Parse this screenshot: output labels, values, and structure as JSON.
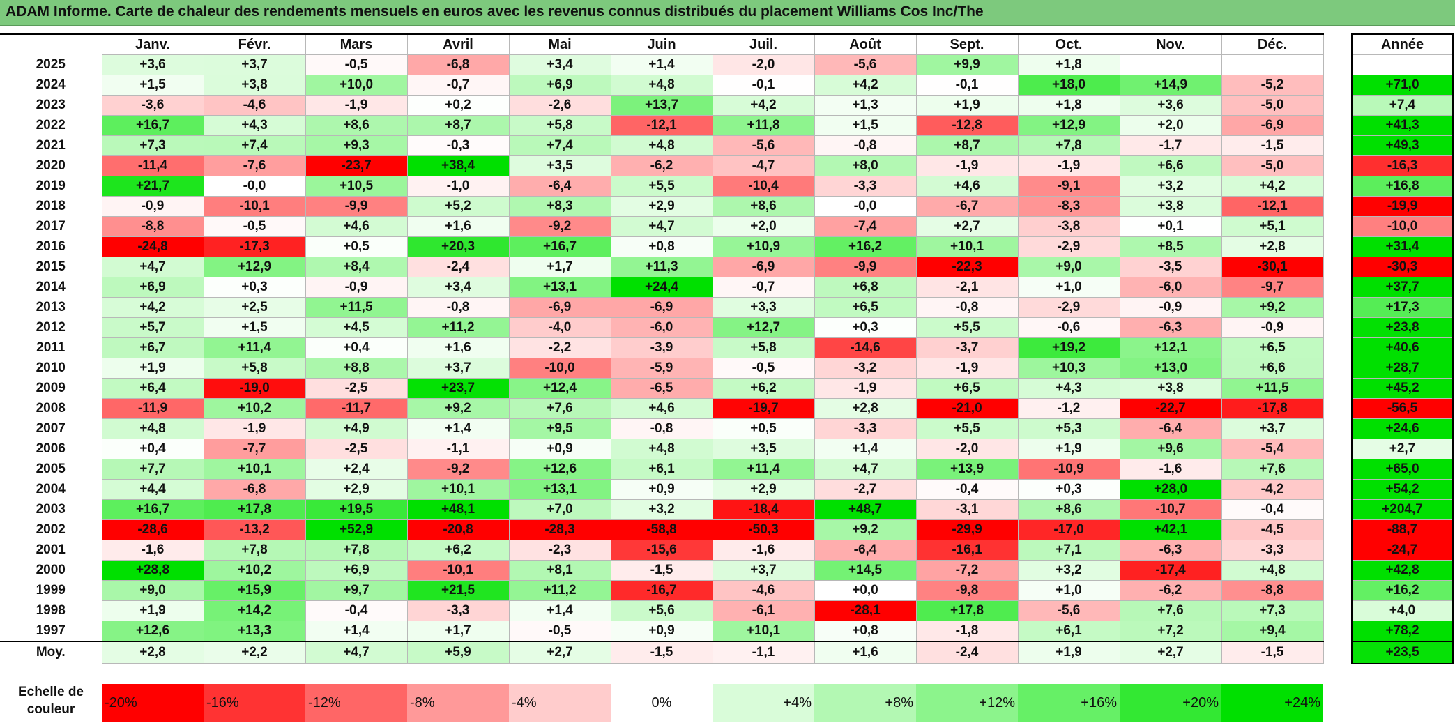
{
  "title": "ADAM Informe. Carte de chaleur des rendements mensuels en euros avec les revenus connus distribués du placement Williams Cos Inc/The",
  "chart_data": {
    "type": "heatmap",
    "title": "ADAM Informe. Carte de chaleur des rendements mensuels en euros avec les revenus connus distribués du placement Williams Cos Inc/The",
    "months": [
      "Janv.",
      "Févr.",
      "Mars",
      "Avril",
      "Mai",
      "Juin",
      "Juil.",
      "Août",
      "Sept.",
      "Oct.",
      "Nov.",
      "Déc."
    ],
    "annual_header": "Année",
    "rows": [
      {
        "year": "2025",
        "values": [
          "+3,6",
          "+3,7",
          "-0,5",
          "-6,8",
          "+3,4",
          "+1,4",
          "-2,0",
          "-5,6",
          "+9,9",
          "+1,8",
          "",
          ""
        ],
        "annual": ""
      },
      {
        "year": "2024",
        "values": [
          "+1,5",
          "+3,8",
          "+10,0",
          "-0,7",
          "+6,9",
          "+4,8",
          "-0,1",
          "+4,2",
          "-0,1",
          "+18,0",
          "+14,9",
          "-5,2"
        ],
        "annual": "+71,0"
      },
      {
        "year": "2023",
        "values": [
          "-3,6",
          "-4,6",
          "-1,9",
          "+0,2",
          "-2,6",
          "+13,7",
          "+4,2",
          "+1,3",
          "+1,9",
          "+1,8",
          "+3,6",
          "-5,0"
        ],
        "annual": "+7,4"
      },
      {
        "year": "2022",
        "values": [
          "+16,7",
          "+4,3",
          "+8,6",
          "+8,7",
          "+5,8",
          "-12,1",
          "+11,8",
          "+1,5",
          "-12,8",
          "+12,9",
          "+2,0",
          "-6,9"
        ],
        "annual": "+41,3"
      },
      {
        "year": "2021",
        "values": [
          "+7,3",
          "+7,4",
          "+9,3",
          "-0,3",
          "+7,4",
          "+4,8",
          "-5,6",
          "-0,8",
          "+8,7",
          "+7,8",
          "-1,7",
          "-1,5"
        ],
        "annual": "+49,3"
      },
      {
        "year": "2020",
        "values": [
          "-11,4",
          "-7,6",
          "-23,7",
          "+38,4",
          "+3,5",
          "-6,2",
          "-4,7",
          "+8,0",
          "-1,9",
          "-1,9",
          "+6,6",
          "-5,0"
        ],
        "annual": "-16,3"
      },
      {
        "year": "2019",
        "values": [
          "+21,7",
          "-0,0",
          "+10,5",
          "-1,0",
          "-6,4",
          "+5,5",
          "-10,4",
          "-3,3",
          "+4,6",
          "-9,1",
          "+3,2",
          "+4,2"
        ],
        "annual": "+16,8"
      },
      {
        "year": "2018",
        "values": [
          "-0,9",
          "-10,1",
          "-9,9",
          "+5,2",
          "+8,3",
          "+2,9",
          "+8,6",
          "-0,0",
          "-6,7",
          "-8,3",
          "+3,8",
          "-12,1"
        ],
        "annual": "-19,9"
      },
      {
        "year": "2017",
        "values": [
          "-8,8",
          "-0,5",
          "+4,6",
          "+1,6",
          "-9,2",
          "+4,7",
          "+2,0",
          "-7,4",
          "+2,7",
          "-3,8",
          "+0,1",
          "+5,1"
        ],
        "annual": "-10,0"
      },
      {
        "year": "2016",
        "values": [
          "-24,8",
          "-17,3",
          "+0,5",
          "+20,3",
          "+16,7",
          "+0,8",
          "+10,9",
          "+16,2",
          "+10,1",
          "-2,9",
          "+8,5",
          "+2,8"
        ],
        "annual": "+31,4"
      },
      {
        "year": "2015",
        "values": [
          "+4,7",
          "+12,9",
          "+8,4",
          "-2,4",
          "+1,7",
          "+11,3",
          "-6,9",
          "-9,9",
          "-22,3",
          "+9,0",
          "-3,5",
          "-30,1"
        ],
        "annual": "-30,3"
      },
      {
        "year": "2014",
        "values": [
          "+6,9",
          "+0,3",
          "-0,9",
          "+3,4",
          "+13,1",
          "+24,4",
          "-0,7",
          "+6,8",
          "-2,1",
          "+1,0",
          "-6,0",
          "-9,7"
        ],
        "annual": "+37,7"
      },
      {
        "year": "2013",
        "values": [
          "+4,2",
          "+2,5",
          "+11,5",
          "-0,8",
          "-6,9",
          "-6,9",
          "+3,3",
          "+6,5",
          "-0,8",
          "-2,9",
          "-0,9",
          "+9,2"
        ],
        "annual": "+17,3"
      },
      {
        "year": "2012",
        "values": [
          "+5,7",
          "+1,5",
          "+4,5",
          "+11,2",
          "-4,0",
          "-6,0",
          "+12,7",
          "+0,3",
          "+5,5",
          "-0,6",
          "-6,3",
          "-0,9"
        ],
        "annual": "+23,8"
      },
      {
        "year": "2011",
        "values": [
          "+6,7",
          "+11,4",
          "+0,4",
          "+1,6",
          "-2,2",
          "-3,9",
          "+5,8",
          "-14,6",
          "-3,7",
          "+19,2",
          "+12,1",
          "+6,5"
        ],
        "annual": "+40,6"
      },
      {
        "year": "2010",
        "values": [
          "+1,9",
          "+5,8",
          "+8,8",
          "+3,7",
          "-10,0",
          "-5,9",
          "-0,5",
          "-3,2",
          "-1,9",
          "+10,3",
          "+13,0",
          "+6,6"
        ],
        "annual": "+28,7"
      },
      {
        "year": "2009",
        "values": [
          "+6,4",
          "-19,0",
          "-2,5",
          "+23,7",
          "+12,4",
          "-6,5",
          "+6,2",
          "-1,9",
          "+6,5",
          "+4,3",
          "+3,8",
          "+11,5"
        ],
        "annual": "+45,2"
      },
      {
        "year": "2008",
        "values": [
          "-11,9",
          "+10,2",
          "-11,7",
          "+9,2",
          "+7,6",
          "+4,6",
          "-19,7",
          "+2,8",
          "-21,0",
          "-1,2",
          "-22,7",
          "-17,8"
        ],
        "annual": "-56,5"
      },
      {
        "year": "2007",
        "values": [
          "+4,8",
          "-1,9",
          "+4,9",
          "+1,4",
          "+9,5",
          "-0,8",
          "+0,5",
          "-3,3",
          "+5,5",
          "+5,3",
          "-6,4",
          "+3,7"
        ],
        "annual": "+24,6"
      },
      {
        "year": "2006",
        "values": [
          "+0,4",
          "-7,7",
          "-2,5",
          "-1,1",
          "+0,9",
          "+4,8",
          "+3,5",
          "+1,4",
          "-2,0",
          "+1,9",
          "+9,6",
          "-5,4"
        ],
        "annual": "+2,7"
      },
      {
        "year": "2005",
        "values": [
          "+7,7",
          "+10,1",
          "+2,4",
          "-9,2",
          "+12,6",
          "+6,1",
          "+11,4",
          "+4,7",
          "+13,9",
          "-10,9",
          "-1,6",
          "+7,6"
        ],
        "annual": "+65,0"
      },
      {
        "year": "2004",
        "values": [
          "+4,4",
          "-6,8",
          "+2,9",
          "+10,1",
          "+13,1",
          "+0,9",
          "+2,9",
          "-2,7",
          "-0,4",
          "+0,3",
          "+28,0",
          "-4,2"
        ],
        "annual": "+54,2"
      },
      {
        "year": "2003",
        "values": [
          "+16,7",
          "+17,8",
          "+19,5",
          "+48,1",
          "+7,0",
          "+3,2",
          "-18,4",
          "+48,7",
          "-3,1",
          "+8,6",
          "-10,7",
          "-0,4"
        ],
        "annual": "+204,7"
      },
      {
        "year": "2002",
        "values": [
          "-28,6",
          "-13,2",
          "+52,9",
          "-20,8",
          "-28,3",
          "-58,8",
          "-50,3",
          "+9,2",
          "-29,9",
          "-17,0",
          "+42,1",
          "-4,5"
        ],
        "annual": "-88,7"
      },
      {
        "year": "2001",
        "values": [
          "-1,6",
          "+7,8",
          "+7,8",
          "+6,2",
          "-2,3",
          "-15,6",
          "-1,6",
          "-6,4",
          "-16,1",
          "+7,1",
          "-6,3",
          "-3,3"
        ],
        "annual": "-24,7"
      },
      {
        "year": "2000",
        "values": [
          "+28,8",
          "+10,2",
          "+6,9",
          "-10,1",
          "+8,1",
          "-1,5",
          "+3,7",
          "+14,5",
          "-7,2",
          "+3,2",
          "-17,4",
          "+4,8"
        ],
        "annual": "+42,8"
      },
      {
        "year": "1999",
        "values": [
          "+9,0",
          "+15,9",
          "+9,7",
          "+21,5",
          "+11,2",
          "-16,7",
          "-4,6",
          "+0,0",
          "-9,8",
          "+1,0",
          "-6,2",
          "-8,8"
        ],
        "annual": "+16,2"
      },
      {
        "year": "1998",
        "values": [
          "+1,9",
          "+14,2",
          "-0,4",
          "-3,3",
          "+1,4",
          "+5,6",
          "-6,1",
          "-28,1",
          "+17,8",
          "-5,6",
          "+7,6",
          "+7,3"
        ],
        "annual": "+4,0"
      },
      {
        "year": "1997",
        "values": [
          "+12,6",
          "+13,3",
          "+1,4",
          "+1,7",
          "-0,5",
          "+0,9",
          "+10,1",
          "+0,8",
          "-1,8",
          "+6,1",
          "+7,2",
          "+9,4"
        ],
        "annual": "+78,2"
      }
    ],
    "average": {
      "label": "Moy.",
      "values": [
        "+2,8",
        "+2,2",
        "+4,7",
        "+5,9",
        "+2,7",
        "-1,5",
        "-1,1",
        "+1,6",
        "-2,4",
        "+1,9",
        "+2,7",
        "-1,5"
      ],
      "annual": "+23,5"
    },
    "color_scale": {
      "label": "Echelle de couleur",
      "stops": [
        {
          "label": "-20%",
          "value": -20,
          "color": "#ff0000"
        },
        {
          "label": "-16%",
          "value": -16,
          "color": "#ff3333"
        },
        {
          "label": "-12%",
          "value": -12,
          "color": "#ff6666"
        },
        {
          "label": "-8%",
          "value": -8,
          "color": "#ff9999"
        },
        {
          "label": "-4%",
          "value": -4,
          "color": "#ffcccc"
        },
        {
          "label": "0%",
          "value": 0,
          "color": "#ffffff"
        },
        {
          "label": "+4%",
          "value": 4,
          "color": "#d9fcd9"
        },
        {
          "label": "+8%",
          "value": 8,
          "color": "#b3f8b3"
        },
        {
          "label": "+12%",
          "value": 12,
          "color": "#8cf48c"
        },
        {
          "label": "+16%",
          "value": 16,
          "color": "#66f066"
        },
        {
          "label": "+20%",
          "value": 20,
          "color": "#33e833"
        },
        {
          "label": "+24%",
          "value": 24,
          "color": "#00e000"
        }
      ]
    }
  }
}
